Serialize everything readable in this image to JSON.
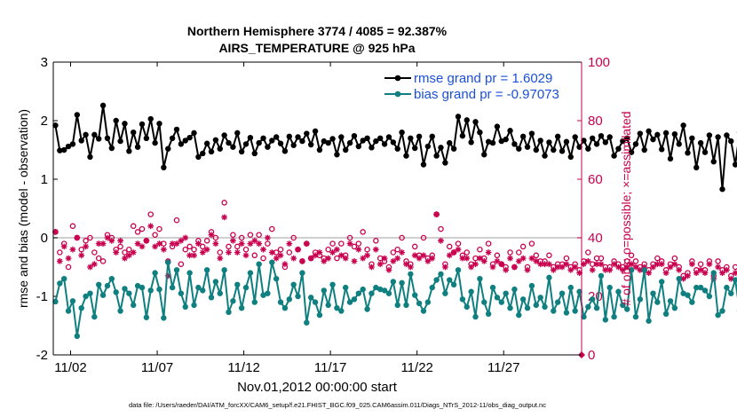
{
  "chart_data": {
    "type": "line",
    "title": "Northern Hemisphere 3774 / 4085 = 92.387%",
    "subtitle": "AIRS_TEMPERATURE @ 925 hPa",
    "xlabel": "Nov.01,2012 00:00:00 start",
    "ylabel": "rmse and bias (model - observation)",
    "ylabel_right": "# of obs: o=possible; ×=assimilated",
    "footer": "data file: /Users/raeder/DAI/ATM_forcXX/CAM6_setup/f.e21.FHIST_BGC.f09_025.CAM6assim.011/Diags_NTrS_2012-11/obs_diag_output.nc",
    "xlim": [
      0.5,
      31.0
    ],
    "ylim": [
      -2,
      3
    ],
    "ylim_right": [
      0,
      100
    ],
    "x_ticks": [
      1.5,
      6.5,
      11.5,
      16.5,
      21.5,
      26.5
    ],
    "x_tick_labels": [
      "11/02",
      "11/07",
      "11/12",
      "11/17",
      "11/22",
      "11/27"
    ],
    "y_ticks": [
      -2,
      -1,
      0,
      1,
      2,
      3
    ],
    "y_tick_labels": [
      "-2",
      "-1",
      "0",
      "1",
      "2",
      "3"
    ],
    "y_ticks_right": [
      0,
      20,
      40,
      60,
      80,
      100
    ],
    "y_tick_labels_right": [
      "0",
      "20",
      "40",
      "60",
      "80",
      "100"
    ],
    "legend": [
      "rmse grand pr = 1.6029",
      "bias grand pr = -0.97073"
    ],
    "legend_position": "top-right",
    "colors": {
      "rmse": "#000000",
      "bias": "#0f7f7f",
      "counts": "#c8004e",
      "legend_text": "#1a4fd6",
      "zero_line": "#bfbfbf"
    },
    "x_start": 0.625,
    "x_step": 0.25,
    "series": [
      {
        "name": "rmse",
        "values": [
          1.92,
          1.49,
          1.5,
          1.56,
          1.6,
          2.1,
          1.66,
          1.76,
          1.38,
          1.76,
          1.69,
          2.26,
          1.7,
          1.53,
          2.0,
          1.65,
          1.95,
          1.48,
          1.8,
          1.55,
          1.94,
          1.7,
          2.03,
          1.62,
          1.95,
          1.2,
          1.52,
          1.7,
          1.85,
          1.6,
          1.66,
          1.71,
          1.79,
          1.38,
          1.44,
          1.61,
          1.47,
          1.67,
          1.52,
          1.75,
          1.62,
          1.55,
          1.79,
          1.47,
          1.6,
          1.71,
          1.44,
          1.62,
          1.7,
          1.55,
          1.66,
          1.72,
          1.61,
          1.48,
          1.73,
          1.58,
          1.72,
          1.65,
          1.78,
          1.59,
          1.82,
          1.5,
          1.65,
          1.62,
          1.69,
          1.42,
          1.72,
          1.5,
          1.62,
          1.74,
          1.56,
          1.66,
          1.7,
          1.54,
          1.65,
          1.7,
          1.6,
          1.72,
          1.63,
          1.52,
          1.8,
          1.4,
          1.7,
          1.53,
          1.73,
          1.25,
          1.56,
          1.73,
          1.4,
          1.54,
          1.28,
          1.62,
          1.52,
          2.07,
          1.74,
          2.01,
          1.63,
          1.98,
          1.8,
          1.42,
          1.64,
          1.62,
          1.9,
          1.65,
          1.68,
          1.83,
          1.6,
          1.52,
          1.73,
          1.55,
          1.78,
          1.5,
          1.66,
          1.4,
          1.63,
          1.5,
          1.73,
          1.48,
          1.64,
          1.38,
          1.72,
          1.55,
          1.66,
          1.52,
          1.7,
          1.6,
          1.74,
          1.63,
          1.72,
          1.4,
          1.52,
          1.65,
          1.7,
          1.46,
          1.6,
          1.78,
          1.5,
          1.82,
          1.68,
          1.76,
          1.51,
          1.79,
          1.35,
          1.77,
          1.6,
          1.92,
          1.45,
          1.7,
          1.2,
          1.62,
          1.46,
          1.75,
          1.3,
          1.72,
          0.83,
          1.75,
          1.65,
          1.25,
          1.8,
          1.58,
          1.7,
          1.63,
          1.23,
          1.25,
          1.1
        ]
      },
      {
        "name": "bias",
        "values": [
          -1.09,
          -0.78,
          -0.7,
          -1.25,
          -1.08,
          -1.68,
          -1.2,
          -1.0,
          -0.95,
          -1.35,
          -0.8,
          -0.98,
          -0.82,
          -0.7,
          -0.93,
          -1.25,
          -0.87,
          -0.95,
          -1.15,
          -0.82,
          -0.85,
          -1.36,
          -0.9,
          -0.6,
          -0.88,
          -1.37,
          -0.42,
          -0.85,
          -0.55,
          -0.95,
          -1.18,
          -0.6,
          -1.15,
          -0.85,
          -0.9,
          -0.55,
          -1.02,
          -0.75,
          -0.95,
          -0.55,
          -1.27,
          -1.08,
          -0.8,
          -1.2,
          -0.85,
          -0.6,
          -1.1,
          -0.45,
          -0.98,
          -0.95,
          -0.42,
          -0.7,
          -1.1,
          -1.2,
          -1.05,
          -0.8,
          -1.0,
          -0.6,
          -1.45,
          -1.02,
          -1.1,
          -1.32,
          -0.9,
          -1.15,
          -0.8,
          -1.2,
          -1.25,
          -0.85,
          -1.1,
          -1.05,
          -0.95,
          -0.88,
          -1.22,
          -0.95,
          -0.85,
          -0.88,
          -0.9,
          -0.95,
          -0.75,
          -1.15,
          -0.77,
          -1.15,
          -0.62,
          -0.98,
          -1.12,
          -1.25,
          -1.1,
          -0.85,
          -0.72,
          -0.62,
          -0.95,
          -0.72,
          -0.8,
          -0.55,
          -1.05,
          -1.18,
          -0.92,
          -1.35,
          -0.7,
          -1.1,
          -1.3,
          -0.85,
          -1.02,
          -1.1,
          -0.95,
          -1.2,
          -0.88,
          -1.32,
          -1.05,
          -1.2,
          -0.82,
          -1.15,
          -1.02,
          -1.18,
          -0.68,
          -1.25,
          -1.1,
          -0.95,
          -1.28,
          -0.85,
          -1.25,
          -0.92,
          -1.35,
          -1.18,
          -1.05,
          -1.2,
          -0.65,
          -1.4,
          -0.85,
          -1.35,
          -0.92,
          -1.15,
          -1.22,
          -0.55,
          -1.35,
          -1.05,
          -0.55,
          -1.42,
          -0.95,
          -1.1,
          -0.75,
          -1.3,
          -1.08,
          -1.2,
          -0.7,
          -0.95,
          -0.98,
          -1.1,
          -0.85,
          -0.85,
          -0.9,
          -1.0,
          -0.6,
          -1.32,
          -1.25,
          -0.85,
          -0.95,
          -0.72,
          -1.25,
          -1.38,
          -0.72,
          -0.85,
          -0.7,
          -0.72,
          -0.63
        ]
      },
      {
        "name": "obs_possible",
        "axis": "right",
        "marker": "o",
        "values": [
          42,
          35,
          38,
          30,
          44,
          40,
          36,
          39,
          40,
          35,
          33,
          32,
          41,
          40,
          36,
          37,
          35,
          36,
          44,
          42,
          43,
          39,
          48,
          41,
          43,
          38,
          32,
          37,
          46,
          31,
          36,
          37,
          36,
          39,
          37,
          39,
          42,
          40,
          35,
          52,
          37,
          41,
          37,
          40,
          36,
          41,
          34,
          41,
          33,
          38,
          43,
          35,
          36,
          30,
          35,
          40,
          36,
          32,
          38,
          33,
          35,
          34,
          33,
          36,
          38,
          33,
          38,
          34,
          40,
          37,
          38,
          42,
          36,
          31,
          39,
          33,
          32,
          30,
          35,
          36,
          40,
          32,
          31,
          37,
          34,
          40,
          33,
          34,
          48,
          43,
          31,
          37,
          35,
          38,
          34,
          35,
          31,
          33,
          36,
          33,
          38,
          31,
          34,
          31,
          30,
          35,
          30,
          35,
          37,
          30,
          38,
          34,
          32,
          32,
          34,
          30,
          31,
          31,
          33,
          30,
          31,
          29,
          32,
          35,
          31,
          33,
          33,
          30,
          30,
          32,
          31,
          30,
          32,
          34,
          32,
          30,
          31,
          29,
          31,
          33,
          32,
          29,
          31,
          33,
          30,
          27,
          28,
          32,
          29,
          31,
          29,
          32,
          27,
          32,
          29,
          30,
          27,
          30,
          28,
          30,
          33,
          40,
          38
        ]
      },
      {
        "name": "obs_assimilated",
        "axis": "right",
        "marker": "*",
        "values": [
          42,
          32,
          37,
          33,
          36,
          40,
          34,
          37,
          30,
          31,
          38,
          38,
          40,
          39,
          35,
          39,
          33,
          34,
          35,
          38,
          37,
          39,
          44,
          37,
          38,
          36,
          27,
          38,
          38,
          39,
          40,
          34,
          34,
          38,
          35,
          36,
          41,
          38,
          33,
          47,
          35,
          39,
          35,
          38,
          34,
          38,
          39,
          38,
          36,
          40,
          35,
          33,
          34,
          31,
          38,
          33,
          36,
          32,
          38,
          33,
          34,
          35,
          32,
          33,
          35,
          36,
          34,
          33,
          38,
          32,
          36,
          33,
          34,
          30,
          36,
          31,
          33,
          29,
          32,
          33,
          35,
          31,
          30,
          34,
          33,
          34,
          32,
          33,
          48,
          39,
          30,
          34,
          35,
          36,
          33,
          33,
          30,
          31,
          33,
          32,
          35,
          30,
          32,
          31,
          29,
          33,
          30,
          32,
          33,
          29,
          33,
          32,
          31,
          31,
          31,
          29,
          30,
          30,
          31,
          29,
          30,
          28,
          31,
          32,
          29,
          31,
          31,
          29,
          29,
          31,
          30,
          29,
          30,
          31,
          30,
          29,
          30,
          28,
          30,
          31,
          31,
          28,
          30,
          31,
          29,
          26,
          27,
          31,
          28,
          29,
          28,
          31,
          26,
          30,
          28,
          29,
          26,
          28,
          27,
          28,
          32,
          39,
          37
        ]
      }
    ]
  }
}
